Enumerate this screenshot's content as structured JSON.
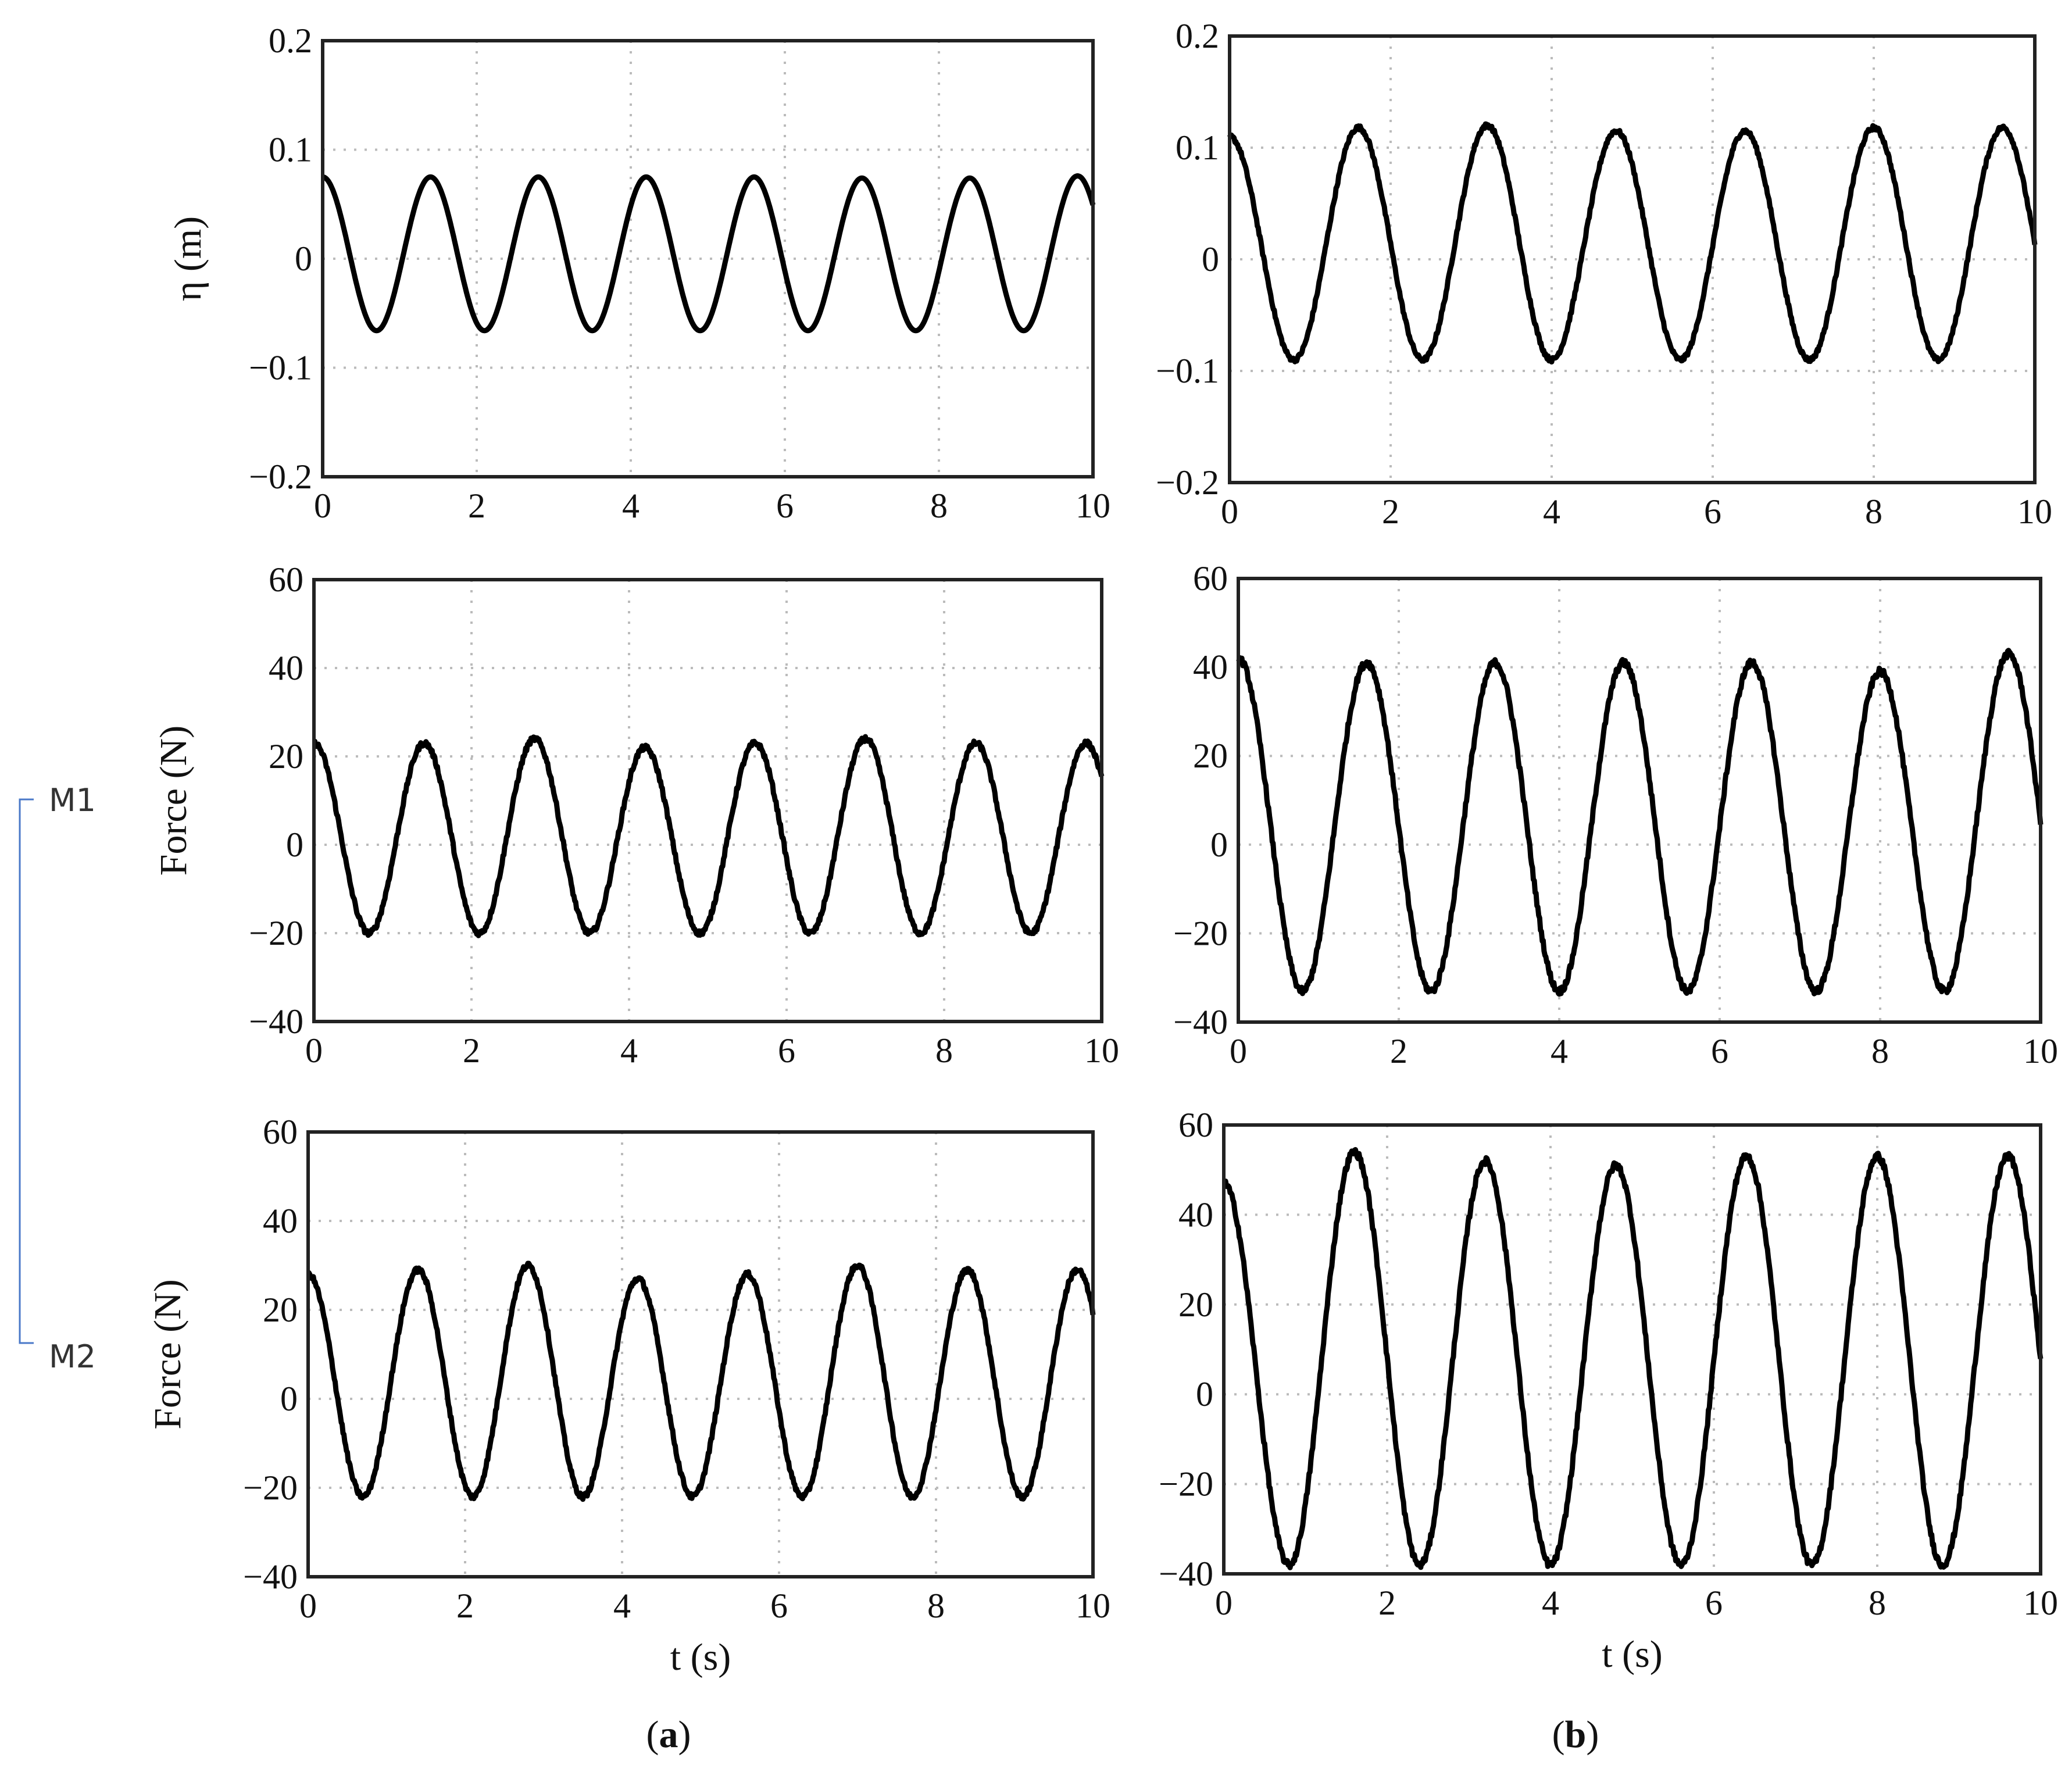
{
  "colors": {
    "line": "#000000",
    "grid": "#bbbbbb",
    "frame": "#222222",
    "bracket": "#4a78c8"
  },
  "side_labels": {
    "top": "M1",
    "bottom": "M2"
  },
  "panel_labels": {
    "a": "(a)",
    "b": "(b)"
  },
  "chart_data": [
    {
      "id": "a-eta",
      "type": "line",
      "column": "a",
      "ylabel": "η (m)",
      "xlabel": "",
      "xlim": [
        0,
        10
      ],
      "ylim": [
        -0.2,
        0.2
      ],
      "xticks": [
        "0",
        "2",
        "4",
        "6",
        "8",
        "10"
      ],
      "yticks": [
        "−0.2",
        "−0.1",
        "0",
        "0.1",
        "0.2"
      ],
      "grid": true,
      "series": [
        {
          "waveform": "sine",
          "period": 1.4,
          "phase_of_first_crest": 0.0,
          "crest": 0.075,
          "trough": -0.066,
          "x": [
            0,
            1.4,
            2.8,
            4.2,
            5.6,
            7.0,
            8.4,
            9.8
          ],
          "crest_values": [
            0.075,
            0.075,
            0.075,
            0.075,
            0.075,
            0.074,
            0.074,
            0.076
          ],
          "noise": 0.0
        }
      ]
    },
    {
      "id": "b-eta",
      "type": "line",
      "column": "b",
      "ylabel": "",
      "xlabel": "",
      "xlim": [
        0,
        10
      ],
      "ylim": [
        -0.2,
        0.2
      ],
      "xticks": [
        "0",
        "2",
        "4",
        "6",
        "8",
        "10"
      ],
      "yticks": [
        "−0.2",
        "−0.1",
        "0",
        "0.1",
        "0.2"
      ],
      "grid": true,
      "series": [
        {
          "waveform": "sine",
          "period": 1.6,
          "phase_of_first_crest": 0.0,
          "crest": 0.118,
          "trough": -0.09,
          "x": [
            0,
            1.6,
            3.2,
            4.8,
            6.4,
            8.0,
            9.6
          ],
          "crest_values": [
            0.11,
            0.118,
            0.12,
            0.115,
            0.115,
            0.118,
            0.118
          ],
          "noise": 0.002
        }
      ]
    },
    {
      "id": "a-m1",
      "type": "line",
      "column": "a",
      "ylabel": "Force (N)",
      "xlabel": "",
      "xlim": [
        0,
        10
      ],
      "ylim": [
        -40,
        60
      ],
      "xticks": [
        "0",
        "2",
        "4",
        "6",
        "8",
        "10"
      ],
      "yticks": [
        "−40",
        "−20",
        "0",
        "20",
        "40",
        "60"
      ],
      "grid": true,
      "series": [
        {
          "waveform": "sine",
          "period": 1.4,
          "phase_of_first_crest": 0.0,
          "crest": 23,
          "trough": -20,
          "x": [
            0,
            1.4,
            2.8,
            4.2,
            5.6,
            7.0,
            8.4,
            9.8
          ],
          "crest_values": [
            23,
            23,
            24,
            22,
            23,
            24,
            23,
            23
          ],
          "noise": 0.6
        }
      ]
    },
    {
      "id": "b-m1",
      "type": "line",
      "column": "b",
      "ylabel": "",
      "xlabel": "",
      "xlim": [
        0,
        10
      ],
      "ylim": [
        -40,
        60
      ],
      "xticks": [
        "0",
        "2",
        "4",
        "6",
        "8",
        "10"
      ],
      "yticks": [
        "−40",
        "−20",
        "0",
        "20",
        "40",
        "60"
      ],
      "grid": true,
      "series": [
        {
          "waveform": "sine",
          "period": 1.6,
          "phase_of_first_crest": 0.0,
          "crest": 41,
          "trough": -33,
          "x": [
            0,
            1.6,
            3.2,
            4.8,
            6.4,
            8.0,
            9.6
          ],
          "crest_values": [
            42,
            41,
            41,
            41,
            41,
            39,
            43
          ],
          "noise": 0.8
        }
      ]
    },
    {
      "id": "a-m2",
      "type": "line",
      "column": "a",
      "ylabel": "Force (N)",
      "xlabel": "t (s)",
      "xlim": [
        0,
        10
      ],
      "ylim": [
        -40,
        60
      ],
      "xticks": [
        "0",
        "2",
        "4",
        "6",
        "8",
        "10"
      ],
      "yticks": [
        "−40",
        "−20",
        "0",
        "20",
        "40",
        "60"
      ],
      "grid": true,
      "series": [
        {
          "waveform": "sine",
          "period": 1.4,
          "phase_of_first_crest": 0.0,
          "crest": 29,
          "trough": -22,
          "x": [
            0,
            1.4,
            2.8,
            4.2,
            5.6,
            7.0,
            8.4,
            9.8
          ],
          "crest_values": [
            28,
            29,
            30,
            27,
            28,
            30,
            29,
            29
          ],
          "noise": 0.6
        }
      ]
    },
    {
      "id": "b-m2",
      "type": "line",
      "column": "b",
      "ylabel": "",
      "xlabel": "t (s)",
      "xlim": [
        0,
        10
      ],
      "ylim": [
        -40,
        60
      ],
      "xticks": [
        "0",
        "2",
        "4",
        "6",
        "8",
        "10"
      ],
      "yticks": [
        "−40",
        "−20",
        "0",
        "20",
        "40",
        "60"
      ],
      "grid": true,
      "series": [
        {
          "waveform": "sine",
          "period": 1.6,
          "phase_of_first_crest": 0.0,
          "crest": 53,
          "trough": -38,
          "x": [
            0,
            1.6,
            3.2,
            4.8,
            6.4,
            8.0,
            9.6
          ],
          "crest_values": [
            47,
            54,
            52,
            51,
            53,
            53,
            53
          ],
          "noise": 0.8
        }
      ]
    }
  ]
}
